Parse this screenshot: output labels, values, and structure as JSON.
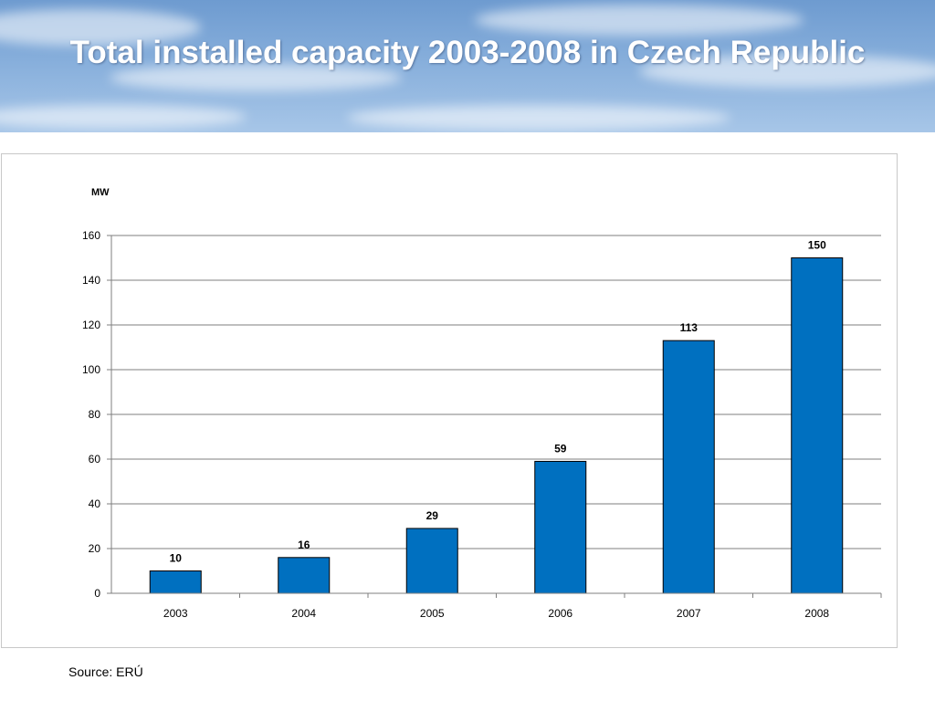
{
  "slide": {
    "title": "Total installed capacity 2003-2008 in Czech Republic",
    "source": "Source: ERÚ"
  },
  "colors": {
    "bar": "#0070c0",
    "bar_stroke": "#000000",
    "grid": "#7f7f7f",
    "title_text": "#ffffff",
    "banner_sky": "#86aedb"
  },
  "chart_data": {
    "type": "bar",
    "title": "Total installed capacity 2003-2008 in Czech Republic",
    "ylabel": "MW",
    "xlabel": "",
    "categories": [
      "2003",
      "2004",
      "2005",
      "2006",
      "2007",
      "2008"
    ],
    "values": [
      10,
      16,
      29,
      59,
      113,
      150
    ],
    "data_labels": [
      "10",
      "16",
      "29",
      "59",
      "113",
      "150"
    ],
    "ylim": [
      0,
      160
    ],
    "yticks": [
      0,
      20,
      40,
      60,
      80,
      100,
      120,
      140,
      160
    ],
    "grid": true,
    "legend": "none"
  }
}
